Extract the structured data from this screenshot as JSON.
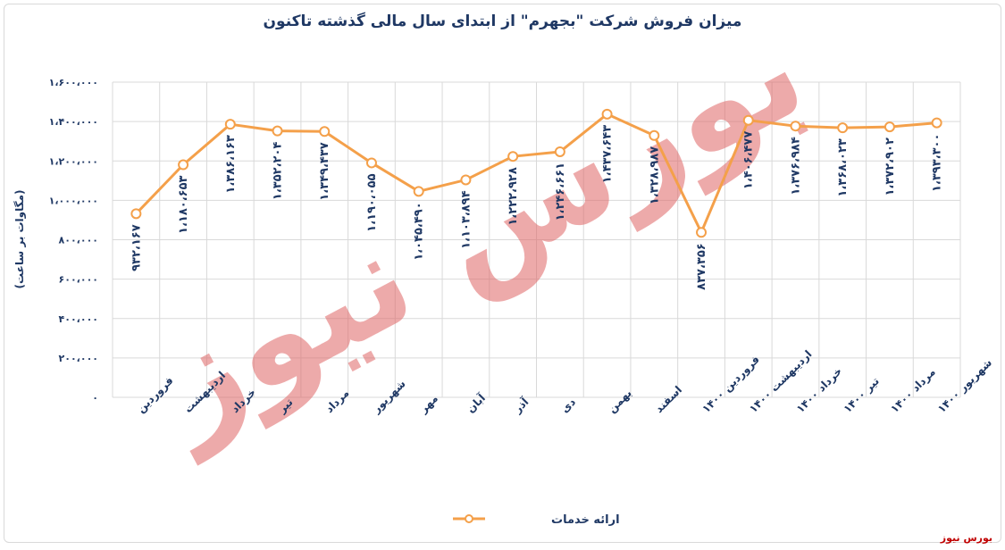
{
  "title": "میزان فروش شرکت \"بجهرم\" از ابتدای سال مالی گذشته تاکنون",
  "brand": "بورس نیوز",
  "watermark_text": "بورس نیوز",
  "colors": {
    "line": "#f4a04a",
    "text": "#1f3864",
    "grid": "#d9d9d9",
    "watermark": "#e06666",
    "brand": "#c00000"
  },
  "chart_data": {
    "type": "line",
    "ylabel": "(مگاوات بر ساعت)",
    "ylim": [
      0,
      1600000
    ],
    "yticks": [
      0,
      200000,
      400000,
      600000,
      800000,
      1000000,
      1200000,
      1400000,
      1600000
    ],
    "ytick_labels": [
      "۰",
      "۲۰۰،۰۰۰",
      "۴۰۰،۰۰۰",
      "۶۰۰،۰۰۰",
      "۸۰۰،۰۰۰",
      "۱،۰۰۰،۰۰۰",
      "۱،۲۰۰،۰۰۰",
      "۱،۴۰۰،۰۰۰",
      "۱،۶۰۰،۰۰۰"
    ],
    "grid": true,
    "legend_position": "bottom",
    "categories": [
      "فروردین",
      "اردیبهشت",
      "خرداد",
      "تیر",
      "مرداد",
      "شهریور",
      "مهر",
      "آبان",
      "آذر",
      "دی",
      "بهمن",
      "اسفند",
      "فروردین ۱۴۰۰",
      "اردیبهشت ۱۴۰۰",
      "خرداد ۱۴۰۰",
      "تیر ۱۴۰۰",
      "مرداد ۱۴۰۰",
      "شهریور ۱۴۰۰"
    ],
    "series": [
      {
        "name": "ارائه خدمات",
        "values": [
          932167,
          1180653,
          1386163,
          1352204,
          1349437,
          1190055,
          1045490,
          1103894,
          1222928,
          1246661,
          1437643,
          1328987,
          837356,
          1406477,
          1376984,
          1368023,
          1372902,
          1393300
        ],
        "labels": [
          "۹۳۲،۱۶۷",
          "۱،۱۸۰،۶۵۳",
          "۱،۳۸۶،۱۶۳",
          "۱،۳۵۲،۲۰۴",
          "۱،۳۴۹،۴۳۷",
          "۱،۱۹۰،۰۵۵",
          "۱،۰۴۵،۴۹۰",
          "۱،۱۰۳،۸۹۴",
          "۱،۲۲۲،۹۲۸",
          "۱،۲۴۶،۶۶۱",
          "۱،۴۳۷،۶۴۳",
          "۱،۳۲۸،۹۸۷",
          "۸۳۷،۳۵۶",
          "۱،۴۰۶،۴۷۷",
          "۱،۳۷۶،۹۸۴",
          "۱،۳۶۸،۰۲۳",
          "۱،۳۷۲،۹۰۲",
          "۱،۳۹۳،۳۰۰"
        ]
      }
    ]
  }
}
